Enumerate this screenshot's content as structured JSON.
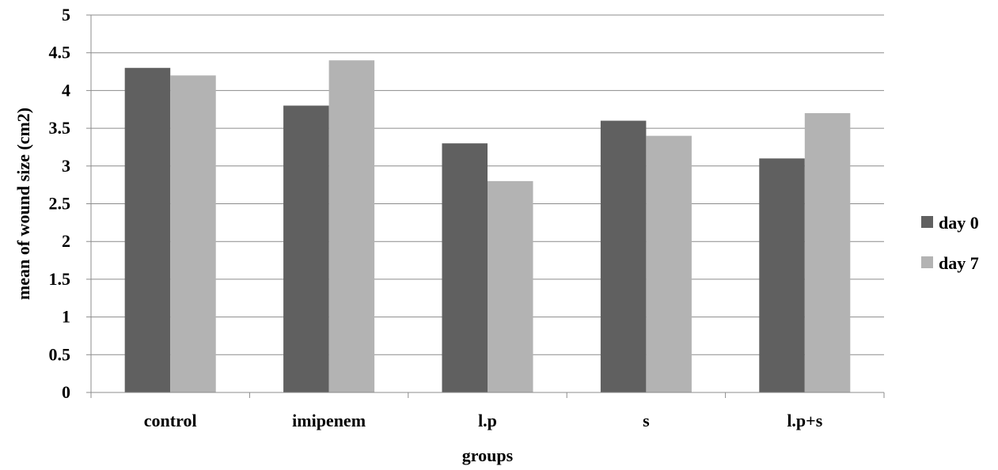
{
  "chart_data": {
    "type": "bar",
    "title": "",
    "xlabel": "groups",
    "ylabel": "mean of wound size (cm2)",
    "ylim": [
      0,
      5
    ],
    "yticks": [
      "0",
      "0.5",
      "1",
      "1.5",
      "2",
      "2.5",
      "3",
      "3.5",
      "4",
      "4.5",
      "5"
    ],
    "categories": [
      "control",
      "imipenem",
      "l.p",
      "s",
      "l.p+s"
    ],
    "series": [
      {
        "name": "day 0",
        "color": "#606060",
        "values": [
          4.3,
          3.8,
          3.3,
          3.6,
          3.1
        ]
      },
      {
        "name": "day 7",
        "color": "#b3b3b3",
        "values": [
          4.2,
          4.4,
          2.8,
          3.4,
          3.7
        ]
      }
    ],
    "grid": true,
    "legend": "right"
  }
}
